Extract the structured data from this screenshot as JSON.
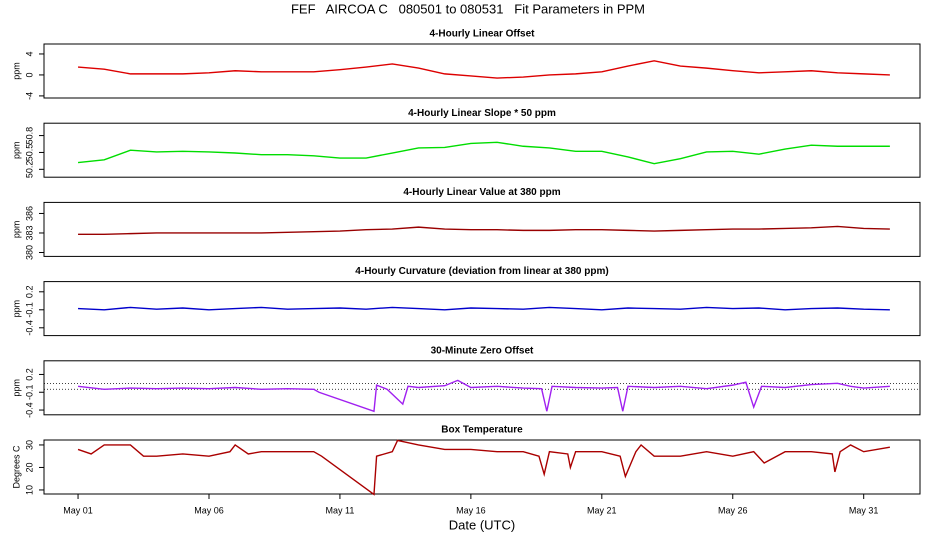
{
  "title": "FEF   AIRCOA C   080501 to 080531   Fit Parameters in PPM",
  "chart_data": [
    {
      "type": "line",
      "title": "4-Hourly Linear Offset",
      "ylabel": "ppm",
      "color": "#dd0000",
      "xlim": [
        -0.3,
        33.15
      ],
      "ylim": [
        -4.4,
        5.9
      ],
      "yticks": [
        -4,
        0,
        4
      ],
      "x": [
        1,
        2,
        3,
        4,
        5,
        6,
        7,
        8,
        9,
        10,
        11,
        12,
        13,
        14,
        15,
        16,
        17,
        18,
        19,
        20,
        21,
        22,
        23,
        24,
        25,
        26,
        27,
        28,
        29,
        30,
        31,
        32
      ],
      "values": [
        1.5,
        1.1,
        0.2,
        0.2,
        0.2,
        0.4,
        0.8,
        0.6,
        0.6,
        0.6,
        1.0,
        1.5,
        2.1,
        1.3,
        0.2,
        -0.2,
        -0.6,
        -0.4,
        0,
        0.2,
        0.6,
        1.7,
        2.7,
        1.7,
        1.3,
        0.8,
        0.4,
        0.6,
        0.8,
        0.4,
        0.2,
        0.0
      ]
    },
    {
      "type": "line",
      "title": "4-Hourly Linear Slope * 50 ppm",
      "ylabel": "ppm",
      "color": "#00dd00",
      "xlim": [
        -0.3,
        33.15
      ],
      "ylim": [
        50.06,
        51.02
      ],
      "yticks": [
        50.2,
        50.5,
        50.8
      ],
      "x": [
        1,
        2,
        3,
        4,
        5,
        6,
        7,
        8,
        9,
        10,
        11,
        12,
        13,
        14,
        15,
        16,
        17,
        18,
        19,
        20,
        21,
        22,
        23,
        24,
        25,
        26,
        27,
        28,
        29,
        30,
        31,
        32
      ],
      "values": [
        50.32,
        50.37,
        50.54,
        50.51,
        50.52,
        50.51,
        50.49,
        50.46,
        50.46,
        50.44,
        50.4,
        50.4,
        50.49,
        50.58,
        50.59,
        50.66,
        50.68,
        50.61,
        50.58,
        50.52,
        50.52,
        50.42,
        50.3,
        50.39,
        50.51,
        50.52,
        50.47,
        50.56,
        50.63,
        50.61,
        50.61,
        50.61
      ]
    },
    {
      "type": "line",
      "title": "4-Hourly Linear Value at 380 ppm",
      "ylabel": "ppm",
      "color": "#990000",
      "xlim": [
        -0.3,
        33.15
      ],
      "ylim": [
        379.4,
        387.7
      ],
      "yticks": [
        380,
        383,
        386
      ],
      "x": [
        1,
        2,
        3,
        4,
        5,
        6,
        7,
        8,
        9,
        10,
        11,
        12,
        13,
        14,
        15,
        16,
        17,
        18,
        19,
        20,
        21,
        22,
        23,
        24,
        25,
        26,
        27,
        28,
        29,
        30,
        31,
        32
      ],
      "values": [
        382.8,
        382.8,
        382.9,
        383.0,
        383.0,
        383.0,
        383.0,
        383.0,
        383.1,
        383.2,
        383.3,
        383.5,
        383.6,
        383.9,
        383.6,
        383.5,
        383.5,
        383.4,
        383.4,
        383.5,
        383.5,
        383.4,
        383.3,
        383.4,
        383.5,
        383.6,
        383.6,
        383.7,
        383.8,
        384.0,
        383.7,
        383.6
      ]
    },
    {
      "type": "line",
      "title": "4-Hourly Curvature (deviation from linear at 380 ppm)",
      "ylabel": "ppm",
      "color": "#0000cc",
      "xlim": [
        -0.3,
        33.15
      ],
      "ylim": [
        -0.53,
        0.37
      ],
      "yticks": [
        -0.4,
        -0.1,
        0.2
      ],
      "x": [
        1,
        2,
        3,
        4,
        5,
        6,
        7,
        8,
        9,
        10,
        11,
        12,
        13,
        14,
        15,
        16,
        17,
        18,
        19,
        20,
        21,
        22,
        23,
        24,
        25,
        26,
        27,
        28,
        29,
        30,
        31,
        32
      ],
      "values": [
        -0.08,
        -0.1,
        -0.06,
        -0.09,
        -0.07,
        -0.1,
        -0.08,
        -0.06,
        -0.09,
        -0.08,
        -0.07,
        -0.09,
        -0.06,
        -0.08,
        -0.1,
        -0.07,
        -0.08,
        -0.09,
        -0.06,
        -0.08,
        -0.1,
        -0.07,
        -0.08,
        -0.09,
        -0.06,
        -0.08,
        -0.07,
        -0.1,
        -0.08,
        -0.07,
        -0.09,
        -0.1
      ]
    },
    {
      "type": "line",
      "title": "30-Minute Zero Offset",
      "ylabel": "ppm",
      "color": "#a020f0",
      "xlim": [
        -0.3,
        33.15
      ],
      "ylim": [
        -0.48,
        0.43
      ],
      "yticks": [
        -0.4,
        -0.1,
        0.2
      ],
      "reference_lines": [
        0.05,
        -0.05
      ],
      "x": [
        1,
        2,
        3,
        4,
        5,
        6,
        7,
        8,
        9,
        10,
        10.2,
        12.3,
        12.4,
        12.8,
        13.4,
        13.6,
        14,
        15,
        15.5,
        16,
        17,
        18,
        18.7,
        18.9,
        19.1,
        20,
        21,
        21.6,
        21.8,
        22,
        23,
        24,
        25,
        26,
        26.5,
        26.8,
        27.1,
        28,
        29,
        30,
        30.5,
        31,
        32
      ],
      "values": [
        0.0,
        -0.05,
        -0.03,
        -0.04,
        -0.03,
        -0.04,
        -0.02,
        -0.05,
        -0.04,
        -0.05,
        -0.1,
        -0.42,
        0.02,
        -0.05,
        -0.3,
        0.0,
        -0.02,
        0.01,
        0.1,
        -0.02,
        0.0,
        -0.03,
        -0.04,
        -0.42,
        0.0,
        -0.02,
        -0.03,
        -0.02,
        -0.42,
        0.0,
        -0.02,
        0.0,
        -0.04,
        0.02,
        0.07,
        -0.35,
        0.0,
        -0.02,
        0.03,
        0.05,
        0.0,
        -0.03,
        0.0
      ]
    },
    {
      "type": "line",
      "title": "Box Temperature",
      "ylabel": "Degrees C",
      "color": "#aa0000",
      "xlim": [
        -0.3,
        33.15
      ],
      "ylim": [
        8.2,
        32.2
      ],
      "yticks": [
        10,
        20,
        30
      ],
      "xlabel": "Date (UTC)",
      "xticks": [
        {
          "value": 1,
          "label": "May 01"
        },
        {
          "value": 6,
          "label": "May 06"
        },
        {
          "value": 11,
          "label": "May 11"
        },
        {
          "value": 16,
          "label": "May 16"
        },
        {
          "value": 21,
          "label": "May 21"
        },
        {
          "value": 26,
          "label": "May 26"
        },
        {
          "value": 31,
          "label": "May 31"
        }
      ],
      "x": [
        1,
        1.5,
        2,
        3,
        3.5,
        4,
        5,
        6,
        6.8,
        7,
        7.5,
        8,
        9,
        10,
        10.3,
        12.3,
        12.4,
        13,
        13.2,
        14,
        15,
        16,
        17,
        18,
        18.6,
        18.8,
        19,
        19.7,
        19.8,
        20,
        21,
        21.7,
        21.9,
        22.3,
        22.5,
        23,
        24,
        25,
        26,
        26.8,
        27.2,
        28,
        29,
        29.8,
        29.9,
        30.1,
        30.5,
        31,
        32
      ],
      "values": [
        28,
        26,
        30,
        30,
        25,
        25,
        26,
        25,
        27,
        30,
        26,
        27,
        27,
        27,
        25,
        8,
        25,
        27,
        32,
        30,
        28,
        28,
        27,
        27,
        25,
        17,
        27,
        26,
        20,
        27,
        27,
        25,
        16,
        27,
        30,
        25,
        25,
        27,
        25,
        27,
        22,
        27,
        27,
        26,
        18,
        27,
        30,
        27,
        29
      ]
    }
  ]
}
